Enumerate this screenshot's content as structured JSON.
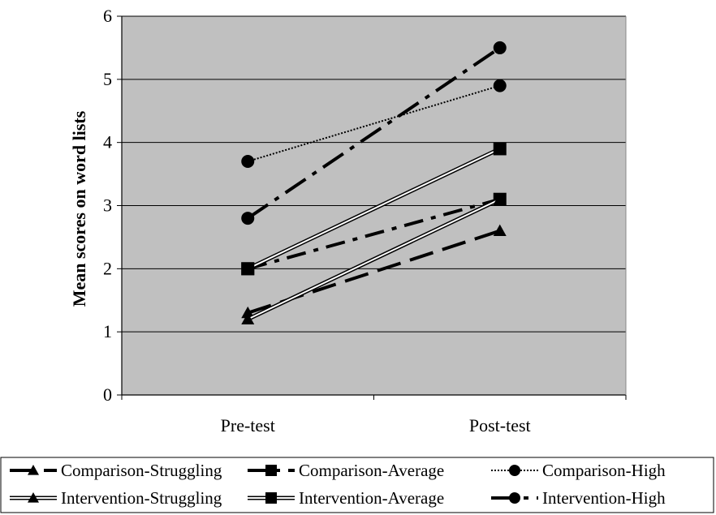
{
  "chart_data": {
    "type": "line",
    "title": "",
    "xlabel": "",
    "ylabel": "Mean scores on word lists",
    "categories": [
      "Pre-test",
      "Post-test"
    ],
    "ylim": [
      0,
      6
    ],
    "yticks": [
      "0",
      "1",
      "2",
      "3",
      "4",
      "5",
      "6"
    ],
    "grid": true,
    "legend_position": "bottom",
    "series": [
      {
        "name": "Comparison-Struggling",
        "values": [
          1.3,
          2.6
        ],
        "marker": "triangle",
        "dash": "long-dash"
      },
      {
        "name": "Comparison-Average",
        "values": [
          2.0,
          3.1
        ],
        "marker": "square",
        "dash": "dash-dot"
      },
      {
        "name": "Comparison-High",
        "values": [
          3.7,
          4.9
        ],
        "marker": "circle",
        "dash": "dotted"
      },
      {
        "name": "Intervention-Struggling",
        "values": [
          1.2,
          3.1
        ],
        "marker": "triangle",
        "dash": "double-line"
      },
      {
        "name": "Intervention-Average",
        "values": [
          2.0,
          3.9
        ],
        "marker": "square",
        "dash": "double-line"
      },
      {
        "name": "Intervention-High",
        "values": [
          2.8,
          5.5
        ],
        "marker": "circle",
        "dash": "long-dash-dot"
      }
    ],
    "colors": {
      "plot_background": "#c0c0c0",
      "line": "#000000"
    }
  }
}
